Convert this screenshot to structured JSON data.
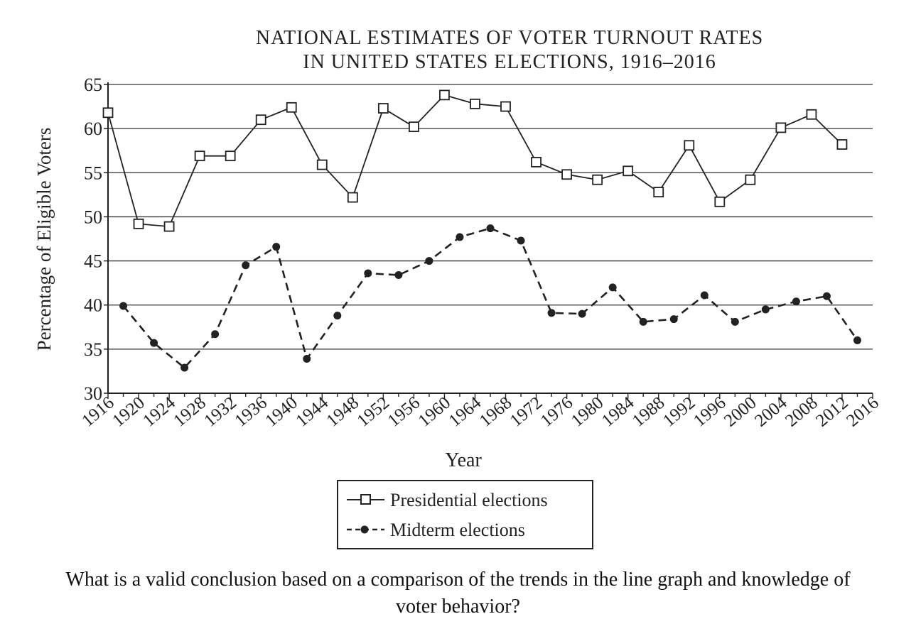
{
  "chart_data": {
    "type": "line",
    "title": [
      "NATIONAL ESTIMATES OF VOTER TURNOUT RATES",
      "IN UNITED STATES ELECTIONS, 1916–2016"
    ],
    "xlabel": "Year",
    "ylabel": "Percentage of Eligible Voters",
    "xlim": [
      1916,
      2016
    ],
    "ylim": [
      30,
      65
    ],
    "x_ticks": [
      "1916",
      "1920",
      "1924",
      "1928",
      "1932",
      "1936",
      "1940",
      "1944",
      "1948",
      "1952",
      "1956",
      "1960",
      "1964",
      "1968",
      "1972",
      "1976",
      "1980",
      "1984",
      "1988",
      "1992",
      "1996",
      "2000",
      "2004",
      "2008",
      "2012",
      "2016"
    ],
    "y_ticks": [
      30,
      35,
      40,
      45,
      50,
      55,
      60,
      65
    ],
    "grid": "horizontal",
    "legend_position": "bottom-center",
    "series": [
      {
        "name": "Presidential elections",
        "marker": "open-square",
        "line_style": "solid",
        "x": [
          1916,
          1920,
          1924,
          1928,
          1932,
          1936,
          1940,
          1944,
          1948,
          1952,
          1956,
          1960,
          1964,
          1968,
          1972,
          1976,
          1980,
          1984,
          1988,
          1992,
          1996,
          2000,
          2004,
          2008,
          2012
        ],
        "values": [
          61.8,
          49.2,
          48.9,
          56.9,
          56.9,
          61.0,
          62.4,
          55.9,
          52.2,
          62.3,
          60.2,
          63.8,
          62.8,
          62.5,
          56.2,
          54.8,
          54.2,
          55.2,
          52.8,
          58.1,
          51.7,
          54.2,
          60.1,
          61.6,
          58.2
        ]
      },
      {
        "name": "Midterm elections",
        "marker": "filled-circle",
        "line_style": "dashed",
        "x": [
          1918,
          1922,
          1926,
          1930,
          1934,
          1938,
          1942,
          1946,
          1950,
          1954,
          1958,
          1962,
          1966,
          1970,
          1974,
          1978,
          1982,
          1986,
          1990,
          1994,
          1998,
          2002,
          2006,
          2010,
          2014
        ],
        "values": [
          39.9,
          35.7,
          32.9,
          36.7,
          44.5,
          46.6,
          33.9,
          38.8,
          43.6,
          43.4,
          45.0,
          47.7,
          48.7,
          47.3,
          39.1,
          39.0,
          42.0,
          38.1,
          38.4,
          41.1,
          38.1,
          39.5,
          40.4,
          41.0,
          36.0
        ]
      }
    ]
  },
  "question": {
    "line1": "What is a valid conclusion based on a comparison of the trends in the line graph and knowledge of",
    "line2": "voter behavior?"
  }
}
